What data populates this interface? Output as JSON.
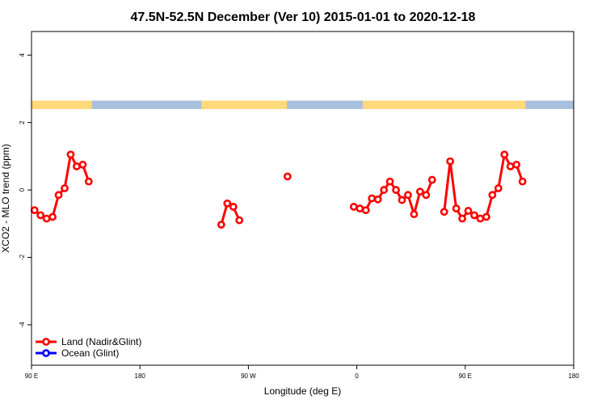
{
  "chart_data": {
    "type": "line",
    "title": "47.5N-52.5N December (Ver 10)   2015-01-01 to 2020-12-18",
    "xlabel": "Longitude (deg E)",
    "ylabel": "XCO2 - MLO trend (ppm)",
    "xlim": [
      90,
      540
    ],
    "ylim": [
      -5.2,
      4.7
    ],
    "x_ticks": [
      {
        "value": 90,
        "label": "90 E"
      },
      {
        "value": 180,
        "label": "180"
      },
      {
        "value": 270,
        "label": "90 W"
      },
      {
        "value": 360,
        "label": "0"
      },
      {
        "value": 450,
        "label": "90 E"
      },
      {
        "value": 540,
        "label": "180"
      }
    ],
    "y_ticks": [
      {
        "value": -4,
        "label": "-4"
      },
      {
        "value": -2,
        "label": "-2"
      },
      {
        "value": 0,
        "label": "0"
      },
      {
        "value": 2,
        "label": "2"
      },
      {
        "value": 4,
        "label": "4"
      }
    ],
    "series": [
      {
        "name": "Land (Nadir&Glint)",
        "color": "#ff0000",
        "segments": [
          [
            [
              92.5,
              -0.6
            ],
            [
              97.5,
              -0.75
            ],
            [
              102.5,
              -0.85
            ],
            [
              107.5,
              -0.8
            ],
            [
              112.5,
              -0.15
            ],
            [
              117.5,
              0.05
            ],
            [
              122.5,
              1.05
            ],
            [
              127.5,
              0.7
            ],
            [
              132.5,
              0.75
            ],
            [
              137.5,
              0.25
            ]
          ],
          [
            [
              247.5,
              -1.03
            ],
            [
              252.5,
              -0.4
            ],
            [
              257.5,
              -0.5
            ],
            [
              262.5,
              -0.9
            ]
          ],
          [
            [
              302.5,
              0.4
            ]
          ],
          [
            [
              357.5,
              -0.5
            ],
            [
              362.5,
              -0.55
            ],
            [
              367.5,
              -0.6
            ],
            [
              372.5,
              -0.25
            ],
            [
              377.5,
              -0.28
            ],
            [
              382.5,
              0.0
            ],
            [
              387.5,
              0.25
            ],
            [
              392.5,
              0.0
            ],
            [
              397.5,
              -0.3
            ],
            [
              402.5,
              -0.15
            ],
            [
              407.5,
              -0.72
            ],
            [
              412.5,
              -0.05
            ],
            [
              417.5,
              -0.15
            ],
            [
              422.5,
              0.3
            ]
          ],
          [
            [
              432.5,
              -0.65
            ],
            [
              437.5,
              0.85
            ],
            [
              442.5,
              -0.55
            ],
            [
              447.5,
              -0.85
            ],
            [
              452.5,
              -0.62
            ],
            [
              457.5,
              -0.75
            ],
            [
              462.5,
              -0.85
            ],
            [
              467.5,
              -0.8
            ],
            [
              472.5,
              -0.15
            ],
            [
              477.5,
              0.05
            ],
            [
              482.5,
              1.05
            ],
            [
              487.5,
              0.7
            ],
            [
              492.5,
              0.75
            ],
            [
              497.5,
              0.25
            ]
          ]
        ]
      },
      {
        "name": "Ocean (Glint)",
        "color": "#0000ff",
        "segments": []
      }
    ],
    "surface_strip": {
      "y_range": [
        2.4,
        2.65
      ],
      "land_color": "#ffd97a",
      "ocean_color": "#a9bfde",
      "land_spans": [
        [
          90,
          140
        ],
        [
          231,
          302
        ],
        [
          365,
          500
        ]
      ]
    },
    "grid": false,
    "legend_position": "bottom-left"
  }
}
